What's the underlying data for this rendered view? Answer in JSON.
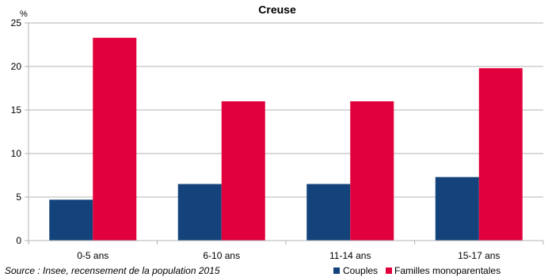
{
  "chart_data": {
    "type": "bar",
    "title": "Creuse",
    "ylabel": "%",
    "xlabel": "",
    "categories": [
      "0-5 ans",
      "6-10 ans",
      "11-14 ans",
      "15-17 ans"
    ],
    "series": [
      {
        "name": "Couples",
        "color": "#13437a",
        "values": [
          4.7,
          6.5,
          6.5,
          7.3
        ]
      },
      {
        "name": "Familles monoparentales",
        "color": "#e2003c",
        "values": [
          23.3,
          16.0,
          16.0,
          19.8
        ]
      }
    ],
    "ylim": [
      0,
      25
    ],
    "yticks": [
      "0",
      "5",
      "10",
      "15",
      "20",
      "25"
    ],
    "grid": true,
    "legend": "bottom-right",
    "source": "Source : Insee, recensement de la population 2015"
  }
}
